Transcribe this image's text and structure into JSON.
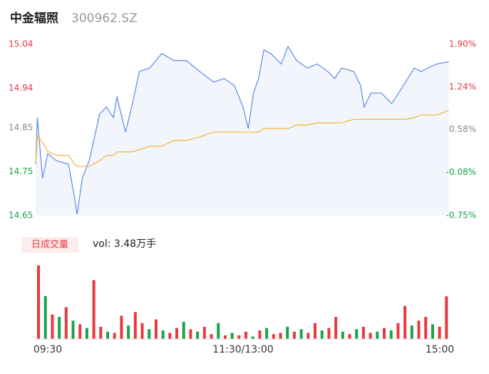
{
  "chart_data": {
    "type": "line",
    "title": "中金辐照",
    "subtitle": "300962.SZ",
    "x": [
      0,
      1,
      4,
      7,
      12,
      19,
      22,
      24,
      27,
      31,
      37,
      41,
      45,
      47,
      52,
      56,
      60,
      66,
      73,
      80,
      87,
      95,
      103,
      109,
      115,
      120,
      123,
      126,
      129,
      132,
      136,
      142,
      146,
      151,
      157,
      163,
      169,
      173,
      177,
      184,
      188,
      190,
      194,
      200,
      206,
      210,
      214,
      219,
      223,
      227,
      232,
      239
    ],
    "xlim": [
      0,
      240
    ],
    "xticks": [
      {
        "value": 0,
        "label": "09:30"
      },
      {
        "value": 120,
        "label": "11:30/13:00"
      },
      {
        "value": 240,
        "label": "15:00"
      }
    ],
    "series": [
      {
        "color": "#5b8ae6",
        "values": [
          14.767,
          14.873,
          14.735,
          14.791,
          14.775,
          14.767,
          14.702,
          14.653,
          14.735,
          14.775,
          14.881,
          14.897,
          14.873,
          14.921,
          14.84,
          14.905,
          14.978,
          14.986,
          15.019,
          15.003,
          15.003,
          14.978,
          14.954,
          14.962,
          14.946,
          14.897,
          14.848,
          14.929,
          14.962,
          15.027,
          15.019,
          14.995,
          15.035,
          15.003,
          14.986,
          14.995,
          14.978,
          14.962,
          14.986,
          14.978,
          14.946,
          14.897,
          14.929,
          14.929,
          14.905,
          14.929,
          14.954,
          14.986,
          14.978,
          14.986,
          14.995,
          15.0
        ]
      },
      {
        "color": "#f5b335",
        "values": [
          14.77,
          14.832,
          14.816,
          14.796,
          14.787,
          14.787,
          14.77,
          14.762,
          14.762,
          14.762,
          14.775,
          14.787,
          14.787,
          14.795,
          14.795,
          14.795,
          14.8,
          14.808,
          14.808,
          14.821,
          14.821,
          14.829,
          14.84,
          14.84,
          14.84,
          14.84,
          14.84,
          14.84,
          14.84,
          14.848,
          14.848,
          14.848,
          14.848,
          14.856,
          14.856,
          14.861,
          14.861,
          14.861,
          14.861,
          14.869,
          14.869,
          14.869,
          14.869,
          14.869,
          14.869,
          14.869,
          14.869,
          14.873,
          14.879,
          14.879,
          14.879,
          14.889
        ]
      }
    ],
    "ylim": [
      14.65,
      15.04
    ],
    "yticks": [
      15.04,
      14.94,
      14.85,
      14.75,
      14.65
    ],
    "y2lim": [
      -0.75,
      1.9
    ],
    "y2ticks": [
      {
        "value": 1.9,
        "label": "1.90%"
      },
      {
        "value": 1.24,
        "label": "1.24%"
      },
      {
        "value": 0.58,
        "label": "0.58%"
      },
      {
        "value": -0.08,
        "label": "-0.08%"
      },
      {
        "value": -0.75,
        "label": "-0.75%"
      }
    ],
    "tick_colors": [
      "#e8393f",
      "#e8393f",
      "#888888",
      "#1aa34a",
      "#1aa34a"
    ],
    "area_color": "#f2f5fc",
    "volume": {
      "legend": "日成交量",
      "label": "vol: 3.48万手",
      "x": [
        0,
        4,
        8,
        12,
        16,
        20,
        24,
        28,
        32,
        36,
        40,
        44,
        48,
        52,
        56,
        60,
        64,
        68,
        72,
        76,
        80,
        84,
        88,
        92,
        96,
        100,
        104,
        108,
        112,
        116,
        120,
        124,
        128,
        132,
        136,
        140,
        144,
        148,
        152,
        156,
        160,
        164,
        168,
        172,
        176,
        180,
        184,
        188,
        192,
        196,
        200,
        204,
        208,
        212,
        216,
        220,
        224,
        228,
        232,
        236
      ],
      "values": [
        6.0,
        3.5,
        2.0,
        1.8,
        2.6,
        1.5,
        1.2,
        0.9,
        4.8,
        1.0,
        0.6,
        0.5,
        1.9,
        1.1,
        2.2,
        1.3,
        0.8,
        1.6,
        0.7,
        0.5,
        0.9,
        1.4,
        0.8,
        0.6,
        1.0,
        0.4,
        1.3,
        0.3,
        0.5,
        0.3,
        0.6,
        0.2,
        0.7,
        0.9,
        0.4,
        0.5,
        1.0,
        0.6,
        0.8,
        0.5,
        1.3,
        0.7,
        0.9,
        1.8,
        0.6,
        0.4,
        0.8,
        1.0,
        0.5,
        0.6,
        0.9,
        0.7,
        1.3,
        2.7,
        1.1,
        1.5,
        1.8,
        1.2,
        1.0,
        3.48
      ],
      "up": [
        true,
        false,
        true,
        false,
        true,
        false,
        true,
        false,
        true,
        true,
        false,
        true,
        true,
        false,
        true,
        true,
        false,
        true,
        false,
        true,
        true,
        false,
        true,
        false,
        true,
        true,
        false,
        true,
        false,
        true,
        true,
        false,
        true,
        false,
        true,
        true,
        false,
        true,
        false,
        true,
        true,
        false,
        true,
        true,
        false,
        true,
        false,
        true,
        true,
        false,
        true,
        false,
        true,
        true,
        false,
        true,
        true,
        false,
        true,
        true
      ],
      "ylim": [
        0,
        6.4
      ],
      "up_color": "#e8393f",
      "down_color": "#1aa34a"
    }
  }
}
